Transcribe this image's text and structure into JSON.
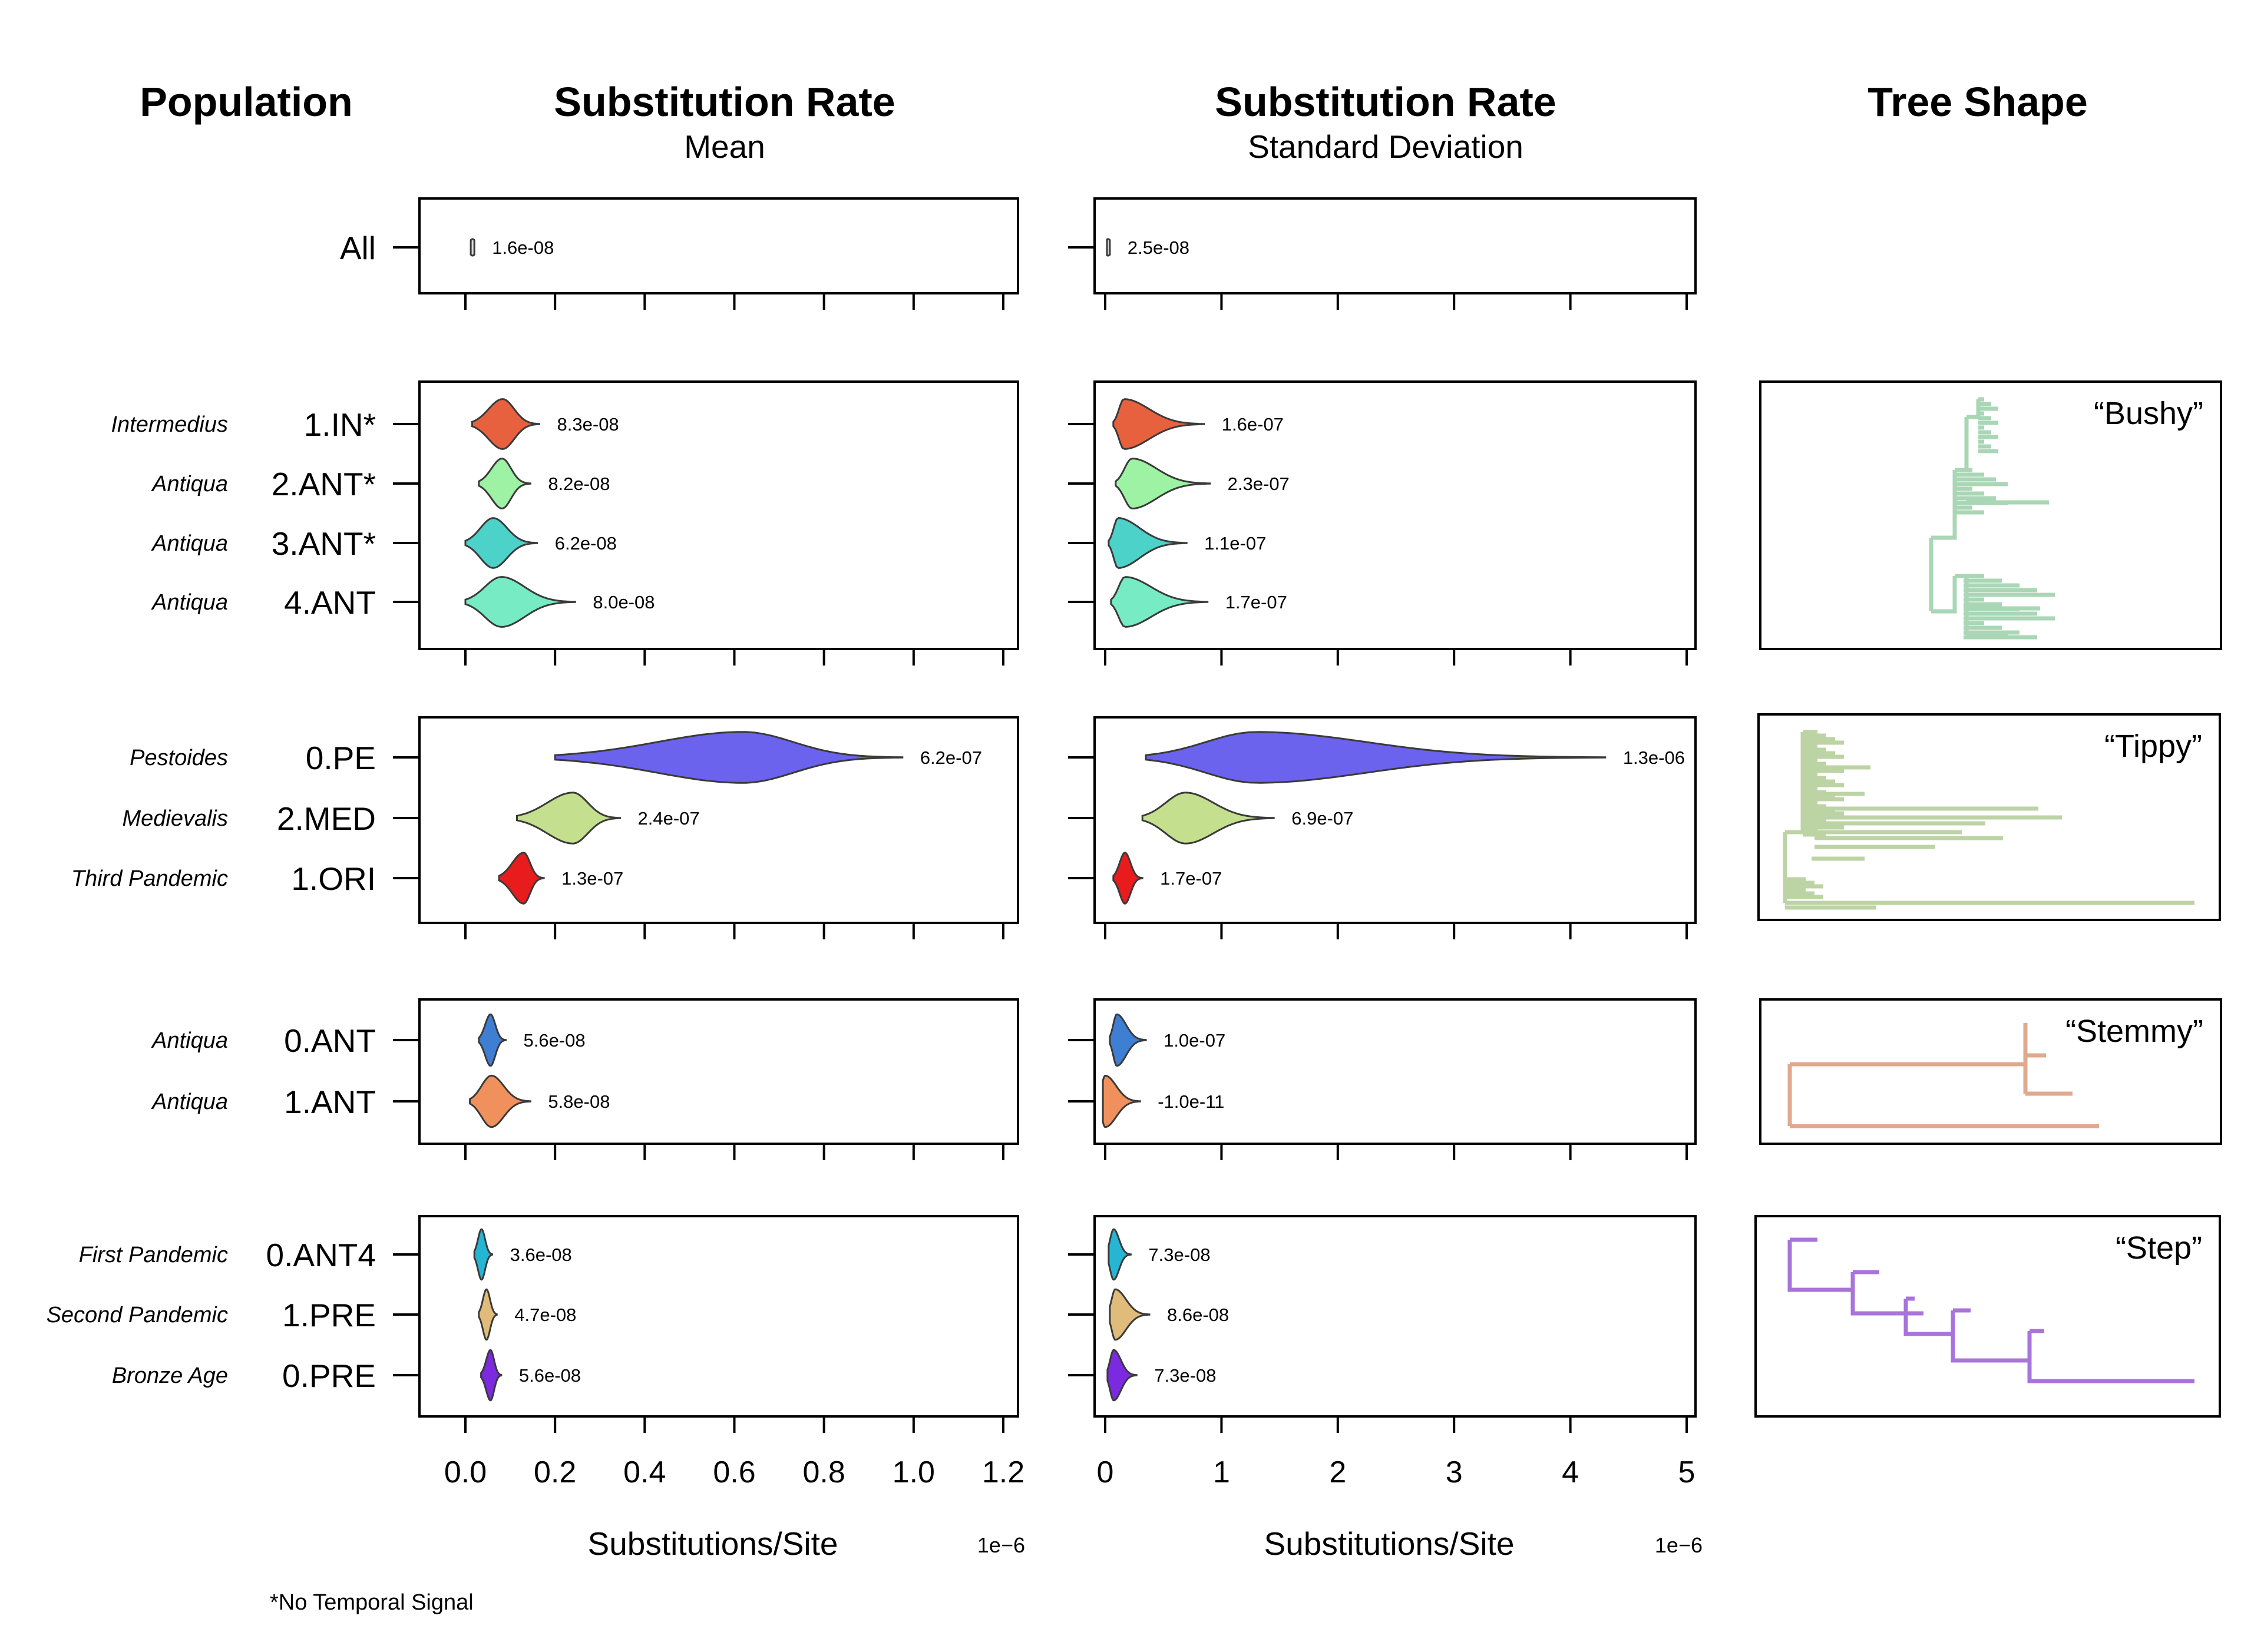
{
  "headers": {
    "population": "Population",
    "mean_title": "Substitution Rate",
    "mean_sub": "Mean",
    "sd_title": "Substitution Rate",
    "sd_sub": "Standard Deviation",
    "tree": "Tree Shape"
  },
  "footnote": "*No Temporal Signal",
  "chart_data": [
    {
      "type": "violin",
      "panel": "mean",
      "xlabel": "Substitutions/Site",
      "x_multiplier": "1e−6",
      "xlim": [
        -0.1,
        1.24
      ],
      "xticks": [
        0.0,
        0.2,
        0.4,
        0.6,
        0.8,
        1.0,
        1.2
      ],
      "xtick_labels": [
        "0.0",
        "0.2",
        "0.4",
        "0.6",
        "0.8",
        "1.0",
        "1.2"
      ]
    },
    {
      "type": "violin",
      "panel": "sd",
      "xlabel": "Substitutions/Site",
      "x_multiplier": "1e−6",
      "xlim": [
        -0.1,
        5.05
      ],
      "xticks": [
        0,
        1,
        2,
        3,
        4,
        5
      ],
      "xtick_labels": [
        "0",
        "1",
        "2",
        "3",
        "4",
        "5"
      ]
    }
  ],
  "groups": [
    {
      "tree_shape": "",
      "tree_color": "",
      "rows": [
        {
          "label": "All",
          "group": "",
          "color": "#d9d9d9",
          "mean": {
            "center": 0.016,
            "min": 0.012,
            "max": 0.02,
            "label": "1.6e-08"
          },
          "sd": {
            "center": 0.025,
            "min": 0.015,
            "max": 0.04,
            "label": "2.5e-08"
          }
        }
      ]
    },
    {
      "tree_shape": "“Bushy”",
      "tree_color": "#a9d6b5",
      "rows": [
        {
          "label": "1.IN*",
          "group": "Intermedius",
          "color": "#e8613f",
          "mean": {
            "center": 0.083,
            "min": 0.015,
            "max": 0.165,
            "label": "8.3e-08"
          },
          "sd": {
            "center": 0.16,
            "min": 0.07,
            "max": 0.85,
            "label": "1.6e-07"
          }
        },
        {
          "label": "2.ANT*",
          "group": "Antiqua",
          "color": "#9df2a3",
          "mean": {
            "center": 0.082,
            "min": 0.03,
            "max": 0.145,
            "label": "8.2e-08"
          },
          "sd": {
            "center": 0.23,
            "min": 0.09,
            "max": 0.9,
            "label": "2.3e-07"
          }
        },
        {
          "label": "3.ANT*",
          "group": "Antiqua",
          "color": "#4cd2c8",
          "mean": {
            "center": 0.062,
            "min": 0.0,
            "max": 0.16,
            "label": "6.2e-08"
          },
          "sd": {
            "center": 0.11,
            "min": 0.03,
            "max": 0.7,
            "label": "1.1e-07"
          }
        },
        {
          "label": "4.ANT",
          "group": "Antiqua",
          "color": "#77ecc4",
          "mean": {
            "center": 0.08,
            "min": 0.0,
            "max": 0.245,
            "label": "8.0e-08"
          },
          "sd": {
            "center": 0.17,
            "min": 0.05,
            "max": 0.88,
            "label": "1.7e-07"
          }
        }
      ]
    },
    {
      "tree_shape": "“Tippy”",
      "tree_color": "#bcd3a4",
      "rows": [
        {
          "label": "0.PE",
          "group": "Pestoides",
          "color": "#6b62ee",
          "mean": {
            "center": 0.62,
            "min": 0.2,
            "max": 0.975,
            "label": "6.2e-07"
          },
          "sd": {
            "center": 1.3,
            "min": 0.35,
            "max": 4.3,
            "label": "1.3e-06"
          }
        },
        {
          "label": "2.MED",
          "group": "Medievalis",
          "color": "#c4e08e",
          "mean": {
            "center": 0.24,
            "min": 0.115,
            "max": 0.345,
            "label": "2.4e-07"
          },
          "sd": {
            "center": 0.69,
            "min": 0.32,
            "max": 1.45,
            "label": "6.9e-07"
          }
        },
        {
          "label": "1.ORI",
          "group": "Third Pandemic",
          "color": "#e81c1c",
          "mean": {
            "center": 0.13,
            "min": 0.075,
            "max": 0.175,
            "label": "1.3e-07"
          },
          "sd": {
            "center": 0.17,
            "min": 0.07,
            "max": 0.32,
            "label": "1.7e-07"
          }
        }
      ]
    },
    {
      "tree_shape": "“Stemmy”",
      "tree_color": "#dfa98e",
      "rows": [
        {
          "label": "0.ANT",
          "group": "Antiqua",
          "color": "#3e7fd4",
          "mean": {
            "center": 0.056,
            "min": 0.03,
            "max": 0.09,
            "label": "5.6e-08"
          },
          "sd": {
            "center": 0.1,
            "min": 0.04,
            "max": 0.35,
            "label": "1.0e-07"
          }
        },
        {
          "label": "1.ANT",
          "group": "Antiqua",
          "color": "#f0905c",
          "mean": {
            "center": 0.058,
            "min": 0.01,
            "max": 0.145,
            "label": "5.8e-08"
          },
          "sd": {
            "center": 0.0,
            "min": -0.02,
            "max": 0.3,
            "label": "-1.0e-11"
          }
        }
      ]
    },
    {
      "tree_shape": "“Step”",
      "tree_color": "#a874db",
      "rows": [
        {
          "label": "0.ANT4",
          "group": "First Pandemic",
          "color": "#26b6d4",
          "mean": {
            "center": 0.036,
            "min": 0.02,
            "max": 0.06,
            "label": "3.6e-08"
          },
          "sd": {
            "center": 0.073,
            "min": 0.03,
            "max": 0.22,
            "label": "7.3e-08"
          }
        },
        {
          "label": "1.PRE",
          "group": "Second Pandemic",
          "color": "#e0bb7a",
          "mean": {
            "center": 0.047,
            "min": 0.03,
            "max": 0.07,
            "label": "4.7e-08"
          },
          "sd": {
            "center": 0.086,
            "min": 0.04,
            "max": 0.38,
            "label": "8.6e-08"
          }
        },
        {
          "label": "0.PRE",
          "group": "Bronze Age",
          "color": "#7b2ae0",
          "mean": {
            "center": 0.056,
            "min": 0.035,
            "max": 0.08,
            "label": "5.6e-08"
          },
          "sd": {
            "center": 0.073,
            "min": 0.02,
            "max": 0.27,
            "label": "7.3e-08"
          }
        }
      ]
    }
  ]
}
